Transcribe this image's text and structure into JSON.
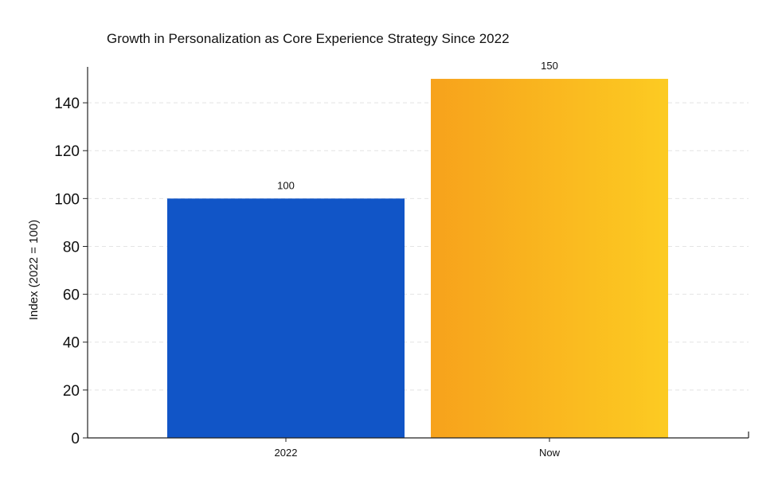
{
  "chart_data": {
    "type": "bar",
    "title": "Growth in Personalization as Core Experience Strategy Since 2022",
    "xlabel": "",
    "ylabel": "Index (2022 = 100)",
    "categories": [
      "2022",
      "Now"
    ],
    "values": [
      100,
      150
    ],
    "data_labels": [
      "100",
      "150"
    ],
    "ylim": [
      0,
      155
    ],
    "yticks": [
      0,
      20,
      40,
      60,
      80,
      100,
      120,
      140
    ],
    "ytick_labels": [
      "0",
      "20",
      "40",
      "60",
      "80",
      "100",
      "120",
      "140"
    ],
    "grid": true,
    "bar_colors": [
      "#1155c7",
      "gradient"
    ],
    "gradient_colors": [
      "#f7a21c",
      "#fccb22"
    ],
    "grid_color": "#e4e4e4",
    "axis_color": "#222222"
  }
}
